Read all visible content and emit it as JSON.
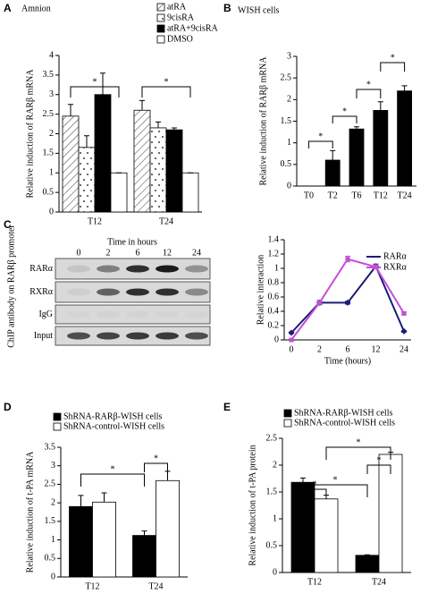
{
  "chart_data": [
    {
      "type": "bar",
      "panel": "A",
      "title": "Amnion",
      "ylabel": "Relative induction of RARβ mRNA",
      "categories": [
        "T12",
        "T24"
      ],
      "series": [
        {
          "name": "atRA",
          "color": "#ffffff",
          "pattern": "hatch",
          "values": [
            2.45,
            2.6
          ],
          "errors": [
            0.3,
            0.25
          ]
        },
        {
          "name": "9cisRA",
          "color": "#ffffff",
          "pattern": "dots",
          "values": [
            1.65,
            2.15
          ],
          "errors": [
            0.3,
            0.15
          ]
        },
        {
          "name": "atRA+9cisRA",
          "color": "#000000",
          "values": [
            3.0,
            2.1
          ],
          "errors": [
            0.55,
            0.05
          ]
        },
        {
          "name": "DMSO",
          "color": "#ffffff",
          "values": [
            1.0,
            1.0
          ],
          "errors": [
            0,
            0
          ]
        }
      ],
      "ylim": [
        0,
        4
      ],
      "yticks": [
        0,
        0.5,
        1,
        1.5,
        2,
        2.5,
        3,
        3.5,
        4
      ],
      "annotations": [
        "*",
        "*"
      ]
    },
    {
      "type": "bar",
      "panel": "B",
      "title": "WISH cells",
      "ylabel": "Relative induction of RARβ mRNA",
      "categories": [
        "T0",
        "T2",
        "T6",
        "T12",
        "T24"
      ],
      "color": "#000000",
      "values": [
        0,
        0.6,
        1.32,
        1.75,
        2.2
      ],
      "errors": [
        0,
        0.22,
        0.05,
        0.2,
        0.12
      ],
      "ylim": [
        0,
        3
      ],
      "yticks": [
        0,
        0.5,
        1,
        1.5,
        2,
        2.5,
        3
      ],
      "annotations": [
        "*",
        "*",
        "*",
        "*"
      ]
    },
    {
      "type": "line",
      "ylabel": "Relative interaction",
      "xlabel": "Time (hours)",
      "categories": [
        "0",
        "2",
        "6",
        "12",
        "24"
      ],
      "series": [
        {
          "name": "RARα",
          "color": "#1c1c78",
          "marker": "diamond",
          "values": [
            0.1,
            0.52,
            0.52,
            1.03,
            0.12
          ],
          "errors": [
            0.01,
            0.03,
            0.02,
            0.03,
            0.01
          ]
        },
        {
          "name": "RXRα",
          "color": "#c24fd6",
          "marker": "square",
          "values": [
            0,
            0.52,
            1.13,
            1.02,
            0.37
          ],
          "errors": [
            0.01,
            0.02,
            0.04,
            0.03,
            0.02
          ]
        }
      ],
      "ylim": [
        0,
        1.4
      ],
      "yticks": [
        0,
        0.2,
        0.4,
        0.6,
        0.8,
        1,
        1.2,
        1.4
      ]
    },
    {
      "type": "bar",
      "panel": "D",
      "ylabel": "Relative induction of t-PA mRNA",
      "categories": [
        "T12",
        "T24"
      ],
      "series": [
        {
          "name": "ShRNA-RARβ-WISH cells",
          "color": "#000000",
          "values": [
            1.9,
            1.12
          ],
          "errors": [
            0.3,
            0.12
          ]
        },
        {
          "name": "ShRNA-control-WISH cells",
          "color": "#ffffff",
          "values": [
            2.02,
            2.6
          ],
          "errors": [
            0.25,
            0.25
          ]
        }
      ],
      "ylim": [
        0,
        3.5
      ],
      "yticks": [
        0,
        0.5,
        1,
        1.5,
        2,
        2.5,
        3,
        3.5
      ],
      "annotations": [
        "*",
        "*"
      ]
    },
    {
      "type": "bar",
      "panel": "E",
      "ylabel": "Relative induction of t-PA protein",
      "categories": [
        "T12",
        "T24"
      ],
      "series": [
        {
          "name": "ShRNA-RARβ-WISH cells",
          "color": "#000000",
          "values": [
            1.68,
            0.32
          ],
          "errors": [
            0.08,
            0.01
          ]
        },
        {
          "name": "ShRNA-control-WISH cells",
          "color": "#ffffff",
          "values": [
            1.37,
            2.2
          ],
          "errors": [
            0.07,
            0.04
          ]
        }
      ],
      "ylim": [
        0,
        2.5
      ],
      "yticks": [
        0,
        0.5,
        1,
        1.5,
        2,
        2.5
      ],
      "annotations": [
        "*",
        "*",
        "*",
        "*"
      ]
    }
  ],
  "gel": {
    "panel": "C",
    "title": "Time in hours",
    "lanes": [
      "0",
      "2",
      "6",
      "12",
      "24"
    ],
    "rows": [
      "RARα",
      "RXRα",
      "IgG",
      "Input"
    ],
    "ylabel": "ChIP antibody on RARβ promoter"
  }
}
